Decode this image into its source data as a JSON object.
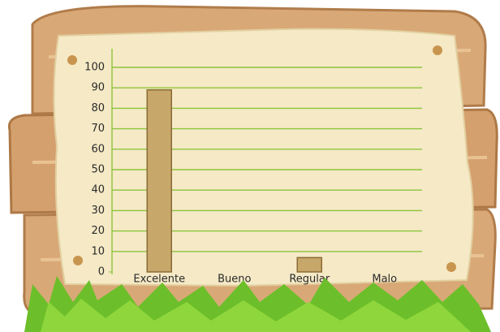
{
  "chart_data": {
    "type": "bar",
    "categories": [
      "Excelente",
      "Bueno",
      "Regular",
      "Malo"
    ],
    "values": [
      89,
      0,
      7,
      0
    ],
    "color": "#c8a86a",
    "ylim": [
      0,
      100
    ],
    "yticks": [
      0,
      10,
      20,
      30,
      40,
      50,
      60,
      70,
      80,
      90,
      100
    ],
    "grid": true
  }
}
